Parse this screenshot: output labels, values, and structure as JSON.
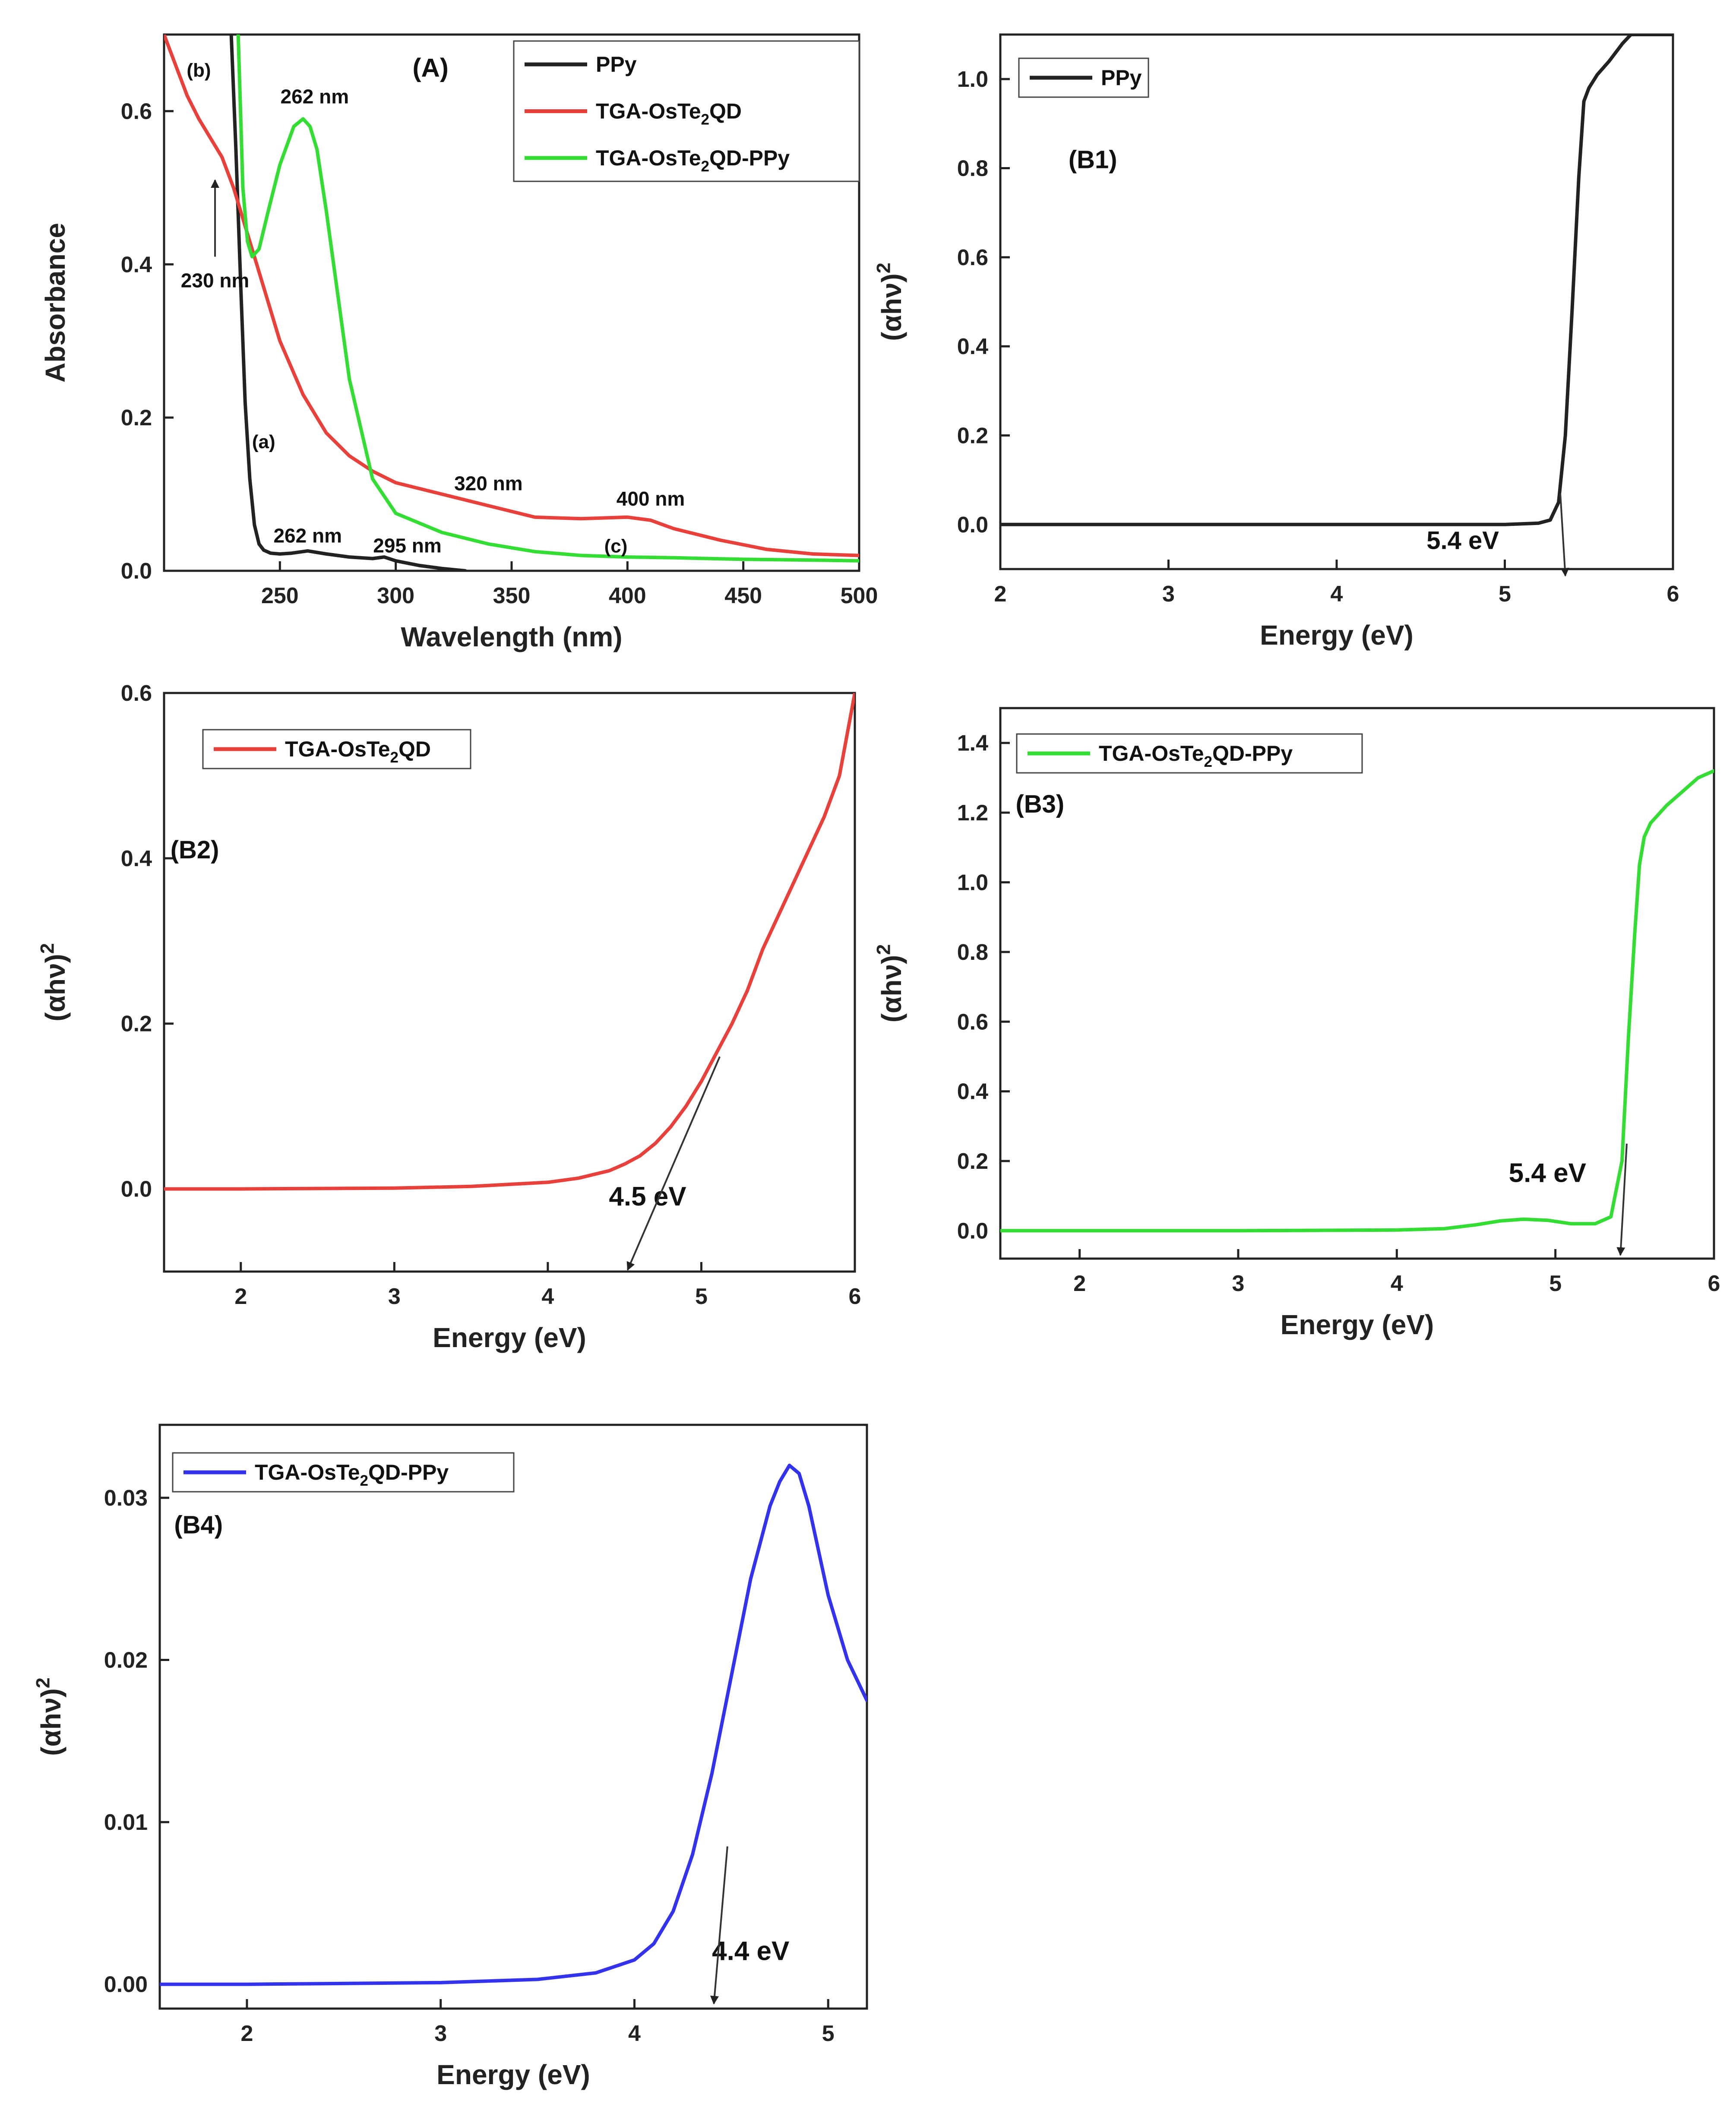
{
  "chart_data": [
    {
      "id": "A",
      "type": "line",
      "xlabel": "Wavelength (nm)",
      "ylabel": "Absorbance",
      "xlim": [
        200,
        500
      ],
      "ylim": [
        0,
        0.7
      ],
      "xticks": [
        250,
        300,
        350,
        400,
        450,
        500
      ],
      "yticks": [
        0.0,
        0.2,
        0.4,
        0.6
      ],
      "xtick_labels": [
        "250",
        "300",
        "350",
        "400",
        "450",
        "500"
      ],
      "ytick_labels": [
        "0.0",
        "0.2",
        "0.4",
        "0.6"
      ],
      "legend_position": "top-right",
      "series": [
        {
          "name": "PPy",
          "color": "#222222",
          "x": [
            229,
            231,
            233,
            235,
            237,
            239,
            241,
            243,
            246,
            250,
            255,
            262,
            270,
            280,
            290,
            295,
            300,
            310,
            320,
            330
          ],
          "y": [
            0.7,
            0.55,
            0.38,
            0.22,
            0.12,
            0.06,
            0.035,
            0.027,
            0.023,
            0.022,
            0.023,
            0.026,
            0.022,
            0.018,
            0.016,
            0.018,
            0.013,
            0.007,
            0.003,
            0.0
          ]
        },
        {
          "name": "TGA-OsTe2QD",
          "color": "#e8413c",
          "x": [
            200,
            205,
            210,
            215,
            220,
            225,
            230,
            235,
            240,
            245,
            250,
            260,
            270,
            280,
            290,
            300,
            320,
            340,
            360,
            380,
            400,
            410,
            420,
            440,
            460,
            480,
            500
          ],
          "y": [
            0.7,
            0.66,
            0.62,
            0.59,
            0.565,
            0.54,
            0.5,
            0.45,
            0.4,
            0.35,
            0.3,
            0.23,
            0.18,
            0.15,
            0.13,
            0.115,
            0.1,
            0.085,
            0.07,
            0.068,
            0.07,
            0.066,
            0.055,
            0.04,
            0.028,
            0.022,
            0.02
          ]
        },
        {
          "name": "TGA-OsTe2QD-PPy",
          "color": "#33dd33",
          "x": [
            232,
            234,
            236,
            238,
            241,
            245,
            250,
            256,
            260,
            263,
            266,
            270,
            275,
            280,
            290,
            300,
            320,
            340,
            360,
            380,
            400,
            420,
            450,
            480,
            500
          ],
          "y": [
            0.7,
            0.5,
            0.43,
            0.41,
            0.42,
            0.47,
            0.53,
            0.58,
            0.59,
            0.58,
            0.55,
            0.47,
            0.36,
            0.25,
            0.12,
            0.075,
            0.05,
            0.035,
            0.025,
            0.02,
            0.018,
            0.017,
            0.015,
            0.014,
            0.013
          ]
        }
      ],
      "annotations": [
        {
          "text": "(A)",
          "x": 315,
          "y": 0.645,
          "size": 60
        },
        {
          "text": "(b)",
          "x": 215,
          "y": 0.645,
          "size": 44
        },
        {
          "text": "262 nm",
          "x": 265,
          "y": 0.61,
          "size": 46
        },
        {
          "text": "230 nm",
          "x": 222,
          "y": 0.37,
          "size": 46
        },
        {
          "text": "(a)",
          "x": 243,
          "y": 0.16,
          "size": 44
        },
        {
          "text": "320 nm",
          "x": 340,
          "y": 0.105,
          "size": 46
        },
        {
          "text": "400 nm",
          "x": 410,
          "y": 0.085,
          "size": 46
        },
        {
          "text": "262 nm",
          "x": 262,
          "y": 0.037,
          "size": 46
        },
        {
          "text": "295 nm",
          "x": 305,
          "y": 0.024,
          "size": 46
        },
        {
          "text": "(c)",
          "x": 395,
          "y": 0.024,
          "size": 44
        }
      ],
      "arrows": [
        {
          "x1": 222,
          "y1": 0.41,
          "x2": 222,
          "y2": 0.51
        }
      ]
    },
    {
      "id": "B1",
      "type": "line",
      "xlabel": "Energy (eV)",
      "ylabel": "(αhν)²",
      "xlim": [
        2,
        6
      ],
      "ylim": [
        -0.1,
        1.1
      ],
      "xticks": [
        2,
        3,
        4,
        5,
        6
      ],
      "yticks": [
        0.0,
        0.2,
        0.4,
        0.6,
        0.8,
        1.0
      ],
      "xtick_labels": [
        "2",
        "3",
        "4",
        "5",
        "6"
      ],
      "ytick_labels": [
        "0.0",
        "0.2",
        "0.4",
        "0.6",
        "0.8",
        "1.0"
      ],
      "legend_position": "top-left",
      "series": [
        {
          "name": "PPy",
          "color": "#222222",
          "x": [
            2.0,
            4.5,
            5.0,
            5.2,
            5.27,
            5.32,
            5.36,
            5.4,
            5.44,
            5.47,
            5.5,
            5.55,
            5.62,
            5.7,
            5.75,
            5.8,
            6.0
          ],
          "y": [
            0.0,
            0.0,
            0.0,
            0.003,
            0.01,
            0.05,
            0.2,
            0.48,
            0.78,
            0.95,
            0.98,
            1.01,
            1.04,
            1.08,
            1.1,
            1.1,
            1.1
          ]
        }
      ],
      "annotations": [
        {
          "text": "(B1)",
          "x": 2.55,
          "y": 0.8,
          "size": 58
        },
        {
          "text": "5.4  eV",
          "x": 4.75,
          "y": -0.055,
          "size": 58,
          "font": "serif"
        }
      ],
      "arrows": [
        {
          "x1": 5.33,
          "y1": 0.07,
          "x2": 5.36,
          "y2": -0.115
        }
      ]
    },
    {
      "id": "B2",
      "type": "line",
      "xlabel": "Energy (eV)",
      "ylabel": "(αhν)²",
      "xlim": [
        1.5,
        6
      ],
      "ylim": [
        -0.1,
        0.6
      ],
      "xticks": [
        2,
        3,
        4,
        5,
        6
      ],
      "yticks": [
        0.0,
        0.2,
        0.4,
        0.6
      ],
      "xtick_labels": [
        "2",
        "3",
        "4",
        "5",
        "6"
      ],
      "ytick_labels": [
        "0.0",
        "0.2",
        "0.4",
        "0.6"
      ],
      "legend_position": "top-left",
      "series": [
        {
          "name": "TGA-OsTe2QD",
          "color": "#e8413c",
          "x": [
            1.5,
            2.0,
            3.0,
            3.5,
            4.0,
            4.2,
            4.4,
            4.5,
            4.6,
            4.7,
            4.8,
            4.9,
            5.0,
            5.1,
            5.2,
            5.3,
            5.4,
            5.5,
            5.6,
            5.7,
            5.8,
            5.9,
            6.0
          ],
          "y": [
            0.0,
            0.0,
            0.001,
            0.003,
            0.008,
            0.013,
            0.022,
            0.03,
            0.04,
            0.055,
            0.075,
            0.1,
            0.13,
            0.165,
            0.2,
            0.24,
            0.29,
            0.33,
            0.37,
            0.41,
            0.45,
            0.5,
            0.6
          ]
        }
      ],
      "annotations": [
        {
          "text": "(B2)",
          "x": 1.7,
          "y": 0.4,
          "size": 58
        },
        {
          "text": "4.5 eV",
          "x": 4.65,
          "y": -0.02,
          "size": 62,
          "font": "serif"
        }
      ],
      "arrows": [
        {
          "x1": 5.12,
          "y1": 0.16,
          "x2": 4.52,
          "y2": -0.098
        }
      ]
    },
    {
      "id": "B3",
      "type": "line",
      "xlabel": "Energy (eV)",
      "ylabel": "(αhν)²",
      "xlim": [
        1.5,
        6
      ],
      "ylim": [
        -0.08,
        1.5
      ],
      "xticks": [
        2,
        3,
        4,
        5,
        6
      ],
      "yticks": [
        0.0,
        0.2,
        0.4,
        0.6,
        0.8,
        1.0,
        1.2,
        1.4
      ],
      "xtick_labels": [
        "2",
        "3",
        "4",
        "5",
        "6"
      ],
      "ytick_labels": [
        "0.0",
        "0.2",
        "0.4",
        "0.6",
        "0.8",
        "1.0",
        "1.2",
        "1.4"
      ],
      "legend_position": "top-left",
      "series": [
        {
          "name": "TGA-OsTe2QD-PPy",
          "color": "#33dd33",
          "x": [
            1.5,
            2.0,
            3.0,
            4.0,
            4.3,
            4.5,
            4.65,
            4.8,
            4.95,
            5.1,
            5.25,
            5.35,
            5.42,
            5.46,
            5.5,
            5.53,
            5.56,
            5.6,
            5.7,
            5.8,
            5.9,
            5.95,
            6.0
          ],
          "y": [
            0.0,
            0.0,
            0.0,
            0.002,
            0.006,
            0.017,
            0.028,
            0.033,
            0.03,
            0.02,
            0.02,
            0.04,
            0.2,
            0.55,
            0.85,
            1.05,
            1.13,
            1.17,
            1.22,
            1.26,
            1.3,
            1.31,
            1.32
          ]
        }
      ],
      "annotations": [
        {
          "text": "(B3)",
          "x": 1.75,
          "y": 1.2,
          "size": 58
        },
        {
          "text": "5.4 eV",
          "x": 4.95,
          "y": 0.14,
          "size": 62,
          "font": "serif"
        }
      ],
      "arrows": [
        {
          "x1": 5.45,
          "y1": 0.25,
          "x2": 5.41,
          "y2": -0.07
        }
      ]
    },
    {
      "id": "B4",
      "type": "line",
      "xlabel": "Energy (eV)",
      "ylabel": "(αhν)²",
      "xlim": [
        1.55,
        5.2
      ],
      "ylim": [
        -0.0015,
        0.0345
      ],
      "xticks": [
        2,
        3,
        4,
        5
      ],
      "yticks": [
        0.0,
        0.01,
        0.02,
        0.03
      ],
      "xtick_labels": [
        "2",
        "3",
        "4",
        "5"
      ],
      "ytick_labels": [
        "0.00",
        "0.01",
        "0.02",
        "0.03"
      ],
      "legend_position": "top-left",
      "series": [
        {
          "name": "TGA-OsTe2QD-PPy",
          "color": "#3333ee",
          "x": [
            1.55,
            2.0,
            3.0,
            3.5,
            3.8,
            4.0,
            4.1,
            4.2,
            4.3,
            4.4,
            4.5,
            4.6,
            4.7,
            4.75,
            4.8,
            4.85,
            4.9,
            5.0,
            5.1,
            5.2
          ],
          "y": [
            0.0,
            0.0,
            0.0001,
            0.0003,
            0.0007,
            0.0015,
            0.0025,
            0.0045,
            0.008,
            0.013,
            0.019,
            0.025,
            0.0295,
            0.031,
            0.032,
            0.0315,
            0.0295,
            0.024,
            0.02,
            0.0175
          ]
        }
      ],
      "annotations": [
        {
          "text": "(B4)",
          "x": 1.75,
          "y": 0.0278,
          "size": 58
        },
        {
          "text": "4.4 eV",
          "x": 4.6,
          "y": 0.0015,
          "size": 62,
          "font": "serif"
        }
      ],
      "arrows": [
        {
          "x1": 4.48,
          "y1": 0.0085,
          "x2": 4.41,
          "y2": -0.0012
        }
      ]
    }
  ]
}
